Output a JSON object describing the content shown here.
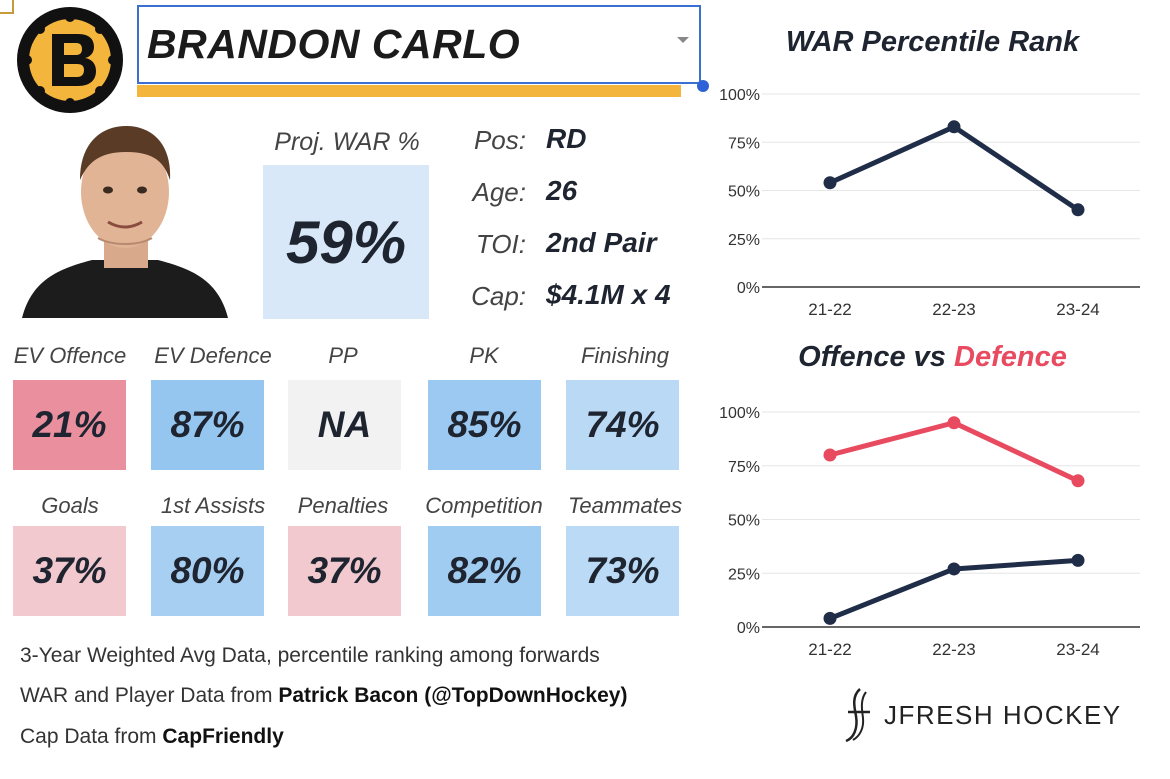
{
  "header": {
    "player_name": "BRANDON CARLO"
  },
  "proj_war": {
    "label": "Proj. WAR %",
    "value": "59%"
  },
  "info": [
    {
      "label": "Pos:",
      "value": "RD"
    },
    {
      "label": "Age:",
      "value": "26"
    },
    {
      "label": "TOI:",
      "value": "2nd Pair"
    },
    {
      "label": "Cap:",
      "value": "$4.1M x 4"
    }
  ],
  "stats": [
    {
      "label": "EV Offence",
      "value": "21%",
      "color": "#ea8f9e"
    },
    {
      "label": "EV Defence",
      "value": "87%",
      "color": "#95c6f0"
    },
    {
      "label": "PP",
      "value": "NA",
      "color": "#f2f2f2"
    },
    {
      "label": "PK",
      "value": "85%",
      "color": "#9bc9f1"
    },
    {
      "label": "Finishing",
      "value": "74%",
      "color": "#b9d9f5"
    },
    {
      "label": "Goals",
      "value": "37%",
      "color": "#f1c9cf"
    },
    {
      "label": "1st Assists",
      "value": "80%",
      "color": "#a6cff2"
    },
    {
      "label": "Penalties",
      "value": "37%",
      "color": "#f1c9cf"
    },
    {
      "label": "Competition",
      "value": "82%",
      "color": "#a1ccf2"
    },
    {
      "label": "Teammates",
      "value": "73%",
      "color": "#badaf5"
    }
  ],
  "footer": {
    "line1": "3-Year Weighted Avg Data, percentile ranking among forwards",
    "line2_prefix": "WAR and Player Data from ",
    "line2_bold": "Patrick Bacon (@TopDownHockey)",
    "line3_prefix": "Cap Data from ",
    "line3_bold": "CapFriendly"
  },
  "brand": {
    "name": "JFRESH HOCKEY"
  },
  "chart_titles": {
    "war": "WAR Percentile Rank",
    "ovd_part1": "Offence vs ",
    "ovd_part2": "Defence"
  },
  "colors": {
    "navy": "#1f2d48",
    "red": "#e84a5f",
    "gold": "#f3b53b",
    "select_border": "#3b6fd0"
  },
  "chart_data": [
    {
      "type": "line",
      "title": "WAR Percentile Rank",
      "x": [
        "21-22",
        "22-23",
        "23-24"
      ],
      "series": [
        {
          "values": [
            54,
            83,
            40
          ],
          "color": "#1f2d48"
        }
      ],
      "ylim": [
        0,
        100
      ],
      "yticks": [
        "0%",
        "25%",
        "50%",
        "75%",
        "100%"
      ],
      "grid": true
    },
    {
      "type": "line",
      "title": "Offence vs Defence",
      "x": [
        "21-22",
        "22-23",
        "23-24"
      ],
      "series": [
        {
          "values": [
            80,
            95,
            68
          ],
          "color": "#e84a5f"
        },
        {
          "values": [
            4,
            27,
            31
          ],
          "color": "#1f2d48"
        }
      ],
      "ylim": [
        0,
        100
      ],
      "yticks": [
        "0%",
        "25%",
        "50%",
        "75%",
        "100%"
      ],
      "grid": true
    }
  ]
}
